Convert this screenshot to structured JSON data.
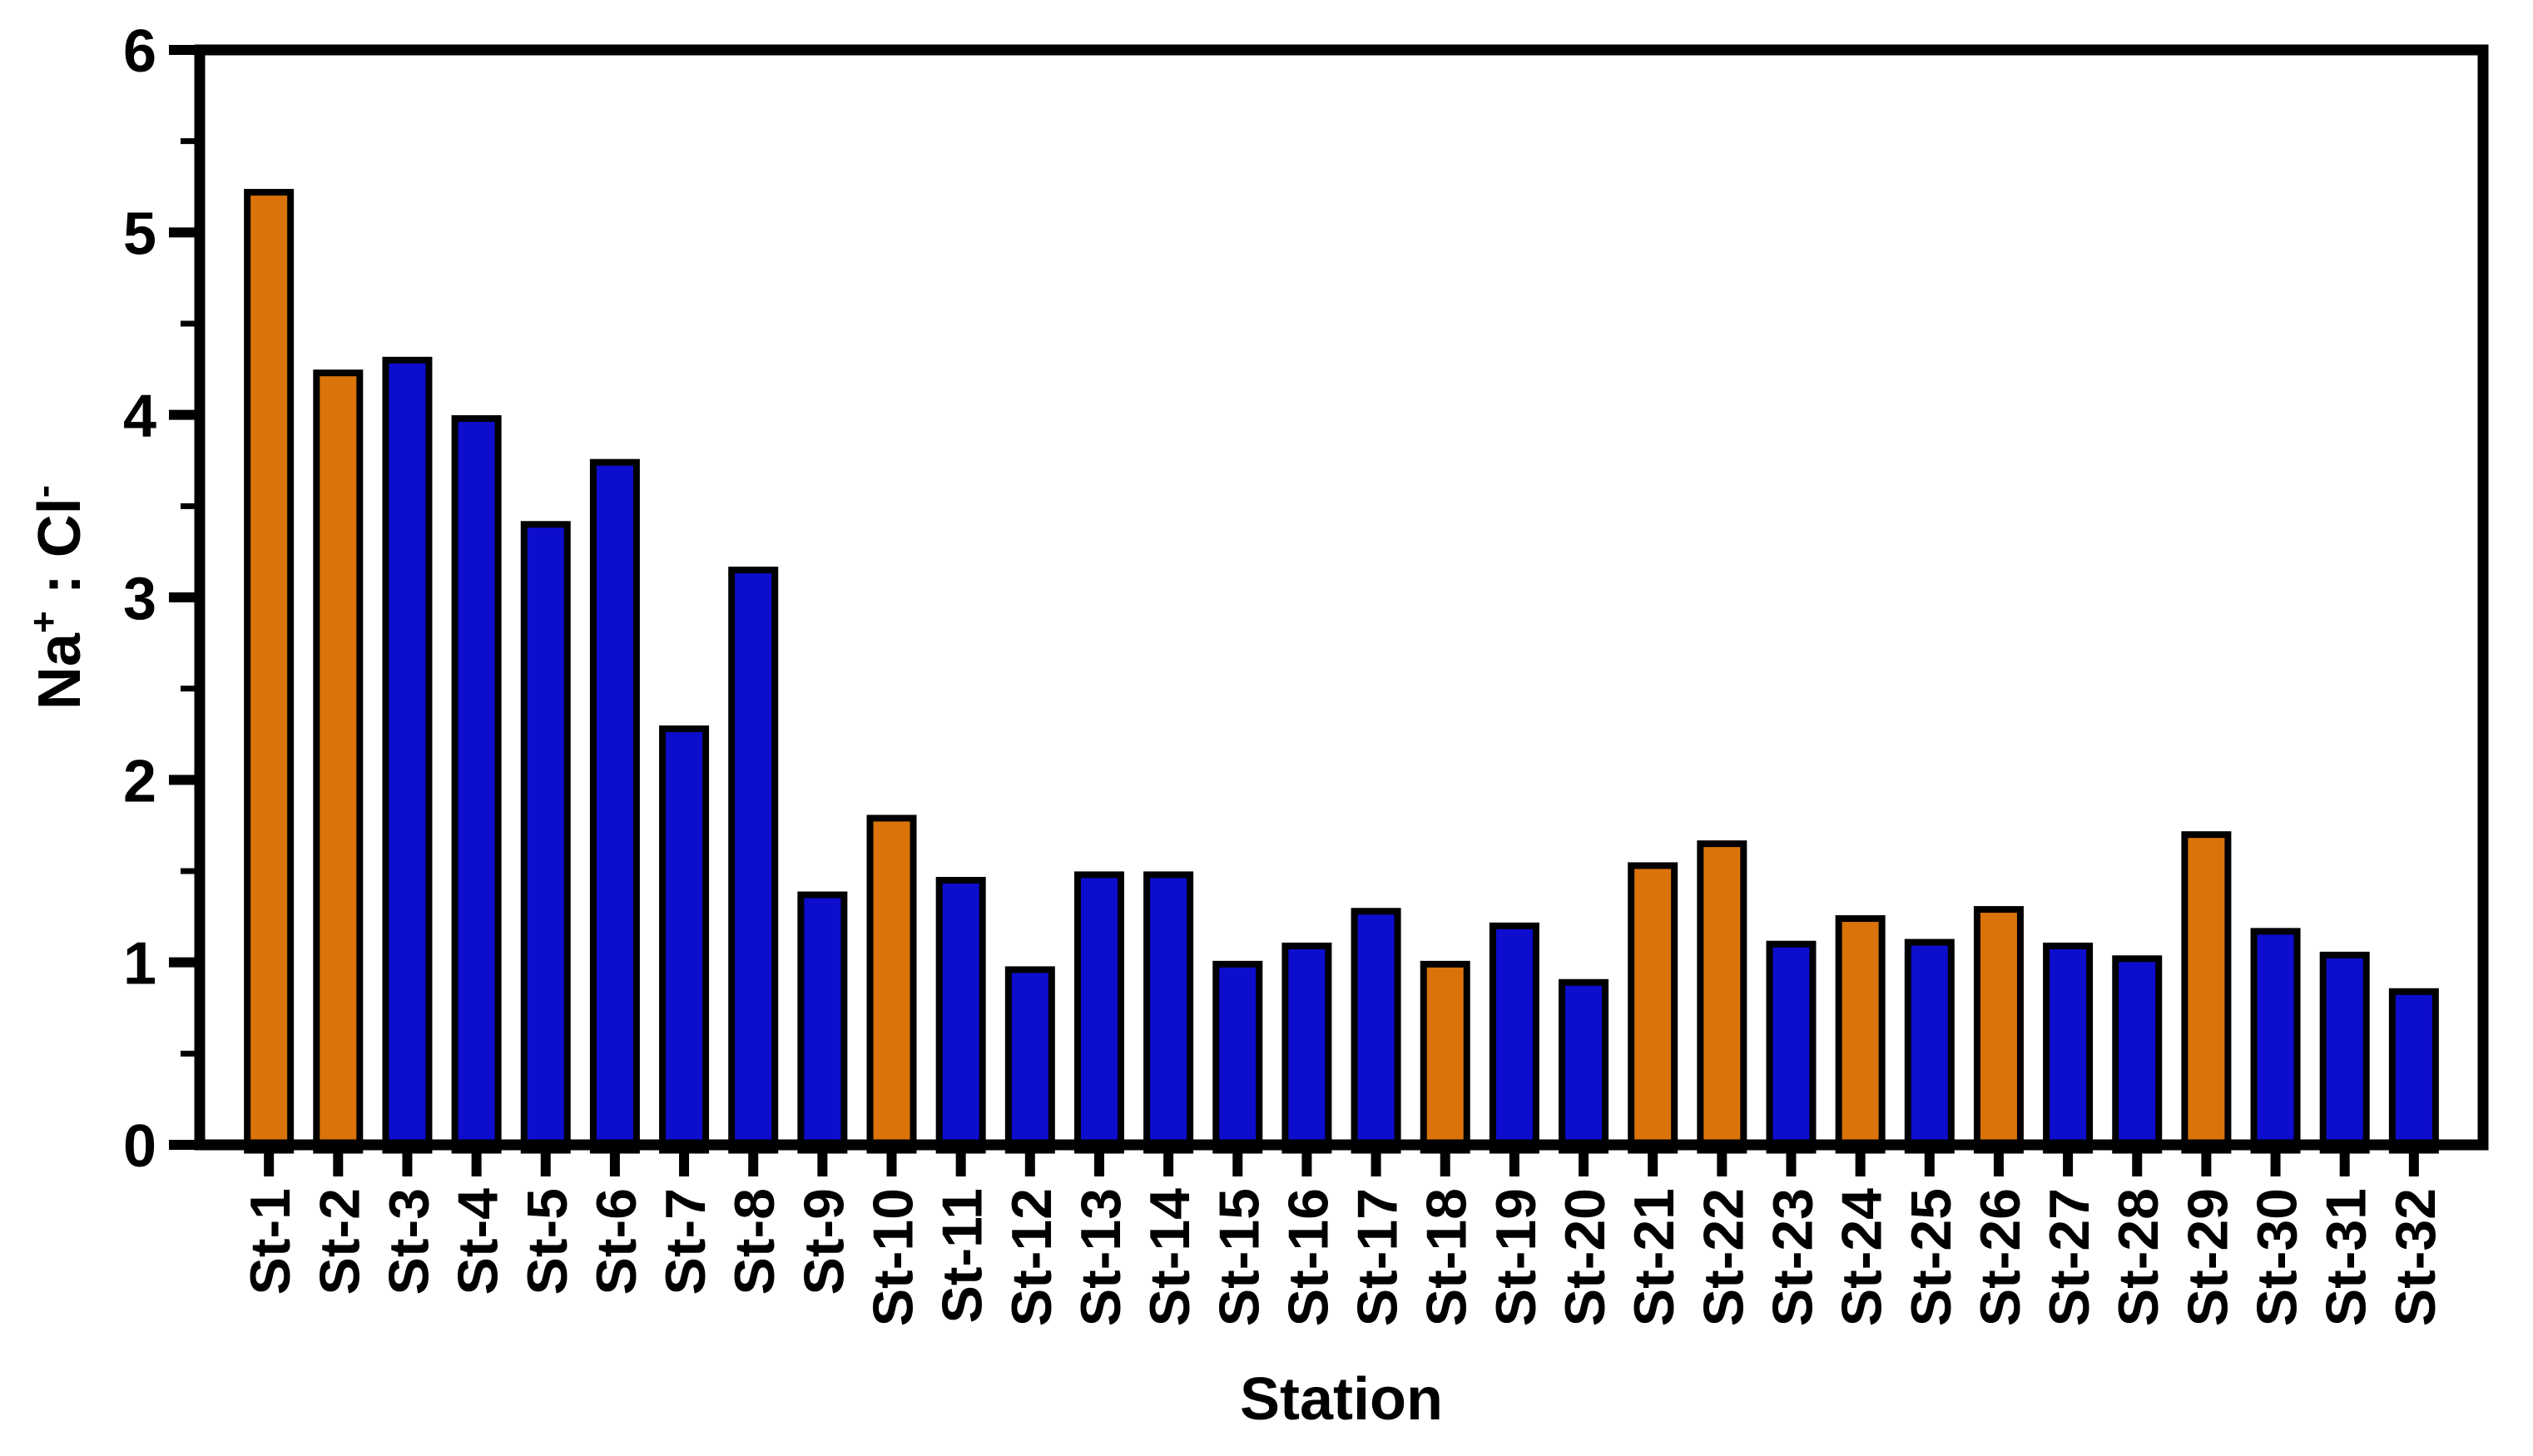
{
  "chart_data": {
    "type": "bar",
    "title": "",
    "xlabel": "Station",
    "ylabel_plain": "Na+ : Cl-",
    "ylabel_parts": [
      {
        "t": "Na"
      },
      {
        "t": "+",
        "sup": true
      },
      {
        "t": " : "
      },
      {
        "t": "Cl"
      },
      {
        "t": "-",
        "sup": true
      }
    ],
    "categories": [
      "St-1",
      "St-2",
      "St-3",
      "St-4",
      "St-5",
      "St-6",
      "St-7",
      "St-8",
      "St-9",
      "St-10",
      "St-11",
      "St-12",
      "St-13",
      "St-14",
      "St-15",
      "St-16",
      "St-17",
      "St-18",
      "St-19",
      "St-20",
      "St-21",
      "St-22",
      "St-23",
      "St-24",
      "St-25",
      "St-26",
      "St-27",
      "St-28",
      "St-29",
      "St-30",
      "St-31",
      "St-32"
    ],
    "values": [
      5.22,
      4.23,
      4.3,
      3.98,
      3.4,
      3.74,
      2.28,
      3.15,
      1.37,
      1.79,
      1.45,
      0.96,
      1.48,
      1.48,
      0.99,
      1.09,
      1.28,
      0.99,
      1.2,
      0.89,
      1.53,
      1.65,
      1.1,
      1.24,
      1.11,
      1.29,
      1.09,
      1.02,
      1.7,
      1.17,
      1.04,
      0.84
    ],
    "highlighted_stations": [
      "St-1",
      "St-2",
      "St-10",
      "St-18",
      "St-21",
      "St-22",
      "St-24",
      "St-26",
      "St-29"
    ],
    "ylim": [
      0,
      6
    ],
    "y_major_ticks": [
      0,
      1,
      2,
      3,
      4,
      5,
      6
    ],
    "y_minor_step": 0.5,
    "grid": false,
    "legend": null,
    "axes_box": true,
    "colors": {
      "bar_blue": "#0D0DCD",
      "bar_orange": "#D9730A",
      "bar_outline": "#000000",
      "axis": "#000000",
      "background": "#FFFFFF"
    }
  }
}
